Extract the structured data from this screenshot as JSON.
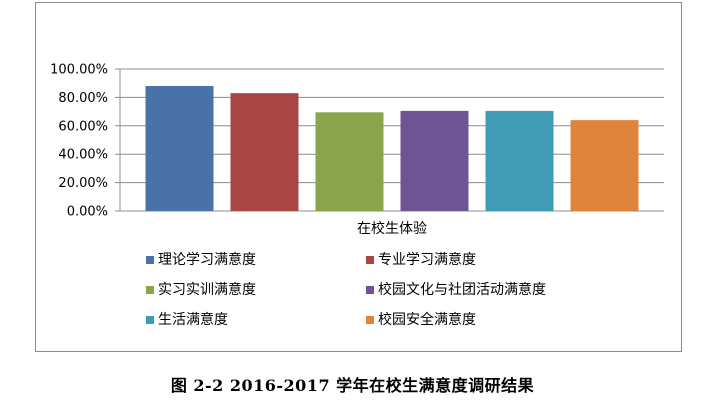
{
  "chart_data": {
    "type": "bar",
    "categories": [
      "在校生体验"
    ],
    "series": [
      {
        "name": "理论学习满意度",
        "values": [
          88.0
        ],
        "color": "#4a72a8"
      },
      {
        "name": "专业学习满意度",
        "values": [
          83.0
        ],
        "color": "#a94644"
      },
      {
        "name": "实习实训满意度",
        "values": [
          69.5
        ],
        "color": "#8aa54c"
      },
      {
        "name": "校园文化与社团活动满意度",
        "values": [
          70.5
        ],
        "color": "#6f5494"
      },
      {
        "name": "生活满意度",
        "values": [
          70.5
        ],
        "color": "#3f9cb4"
      },
      {
        "name": "校园安全满意度",
        "values": [
          64.0
        ],
        "color": "#e0843c"
      }
    ],
    "y_ticks": [
      "0.00%",
      "20.00%",
      "40.00%",
      "60.00%",
      "80.00%",
      "100.00%"
    ],
    "ylim": [
      0,
      100
    ],
    "grid": true,
    "legend_position": "bottom",
    "xlabel": "在校生体验"
  },
  "caption": "图 2-2   2016-2017 学年在校生满意度调研结果"
}
